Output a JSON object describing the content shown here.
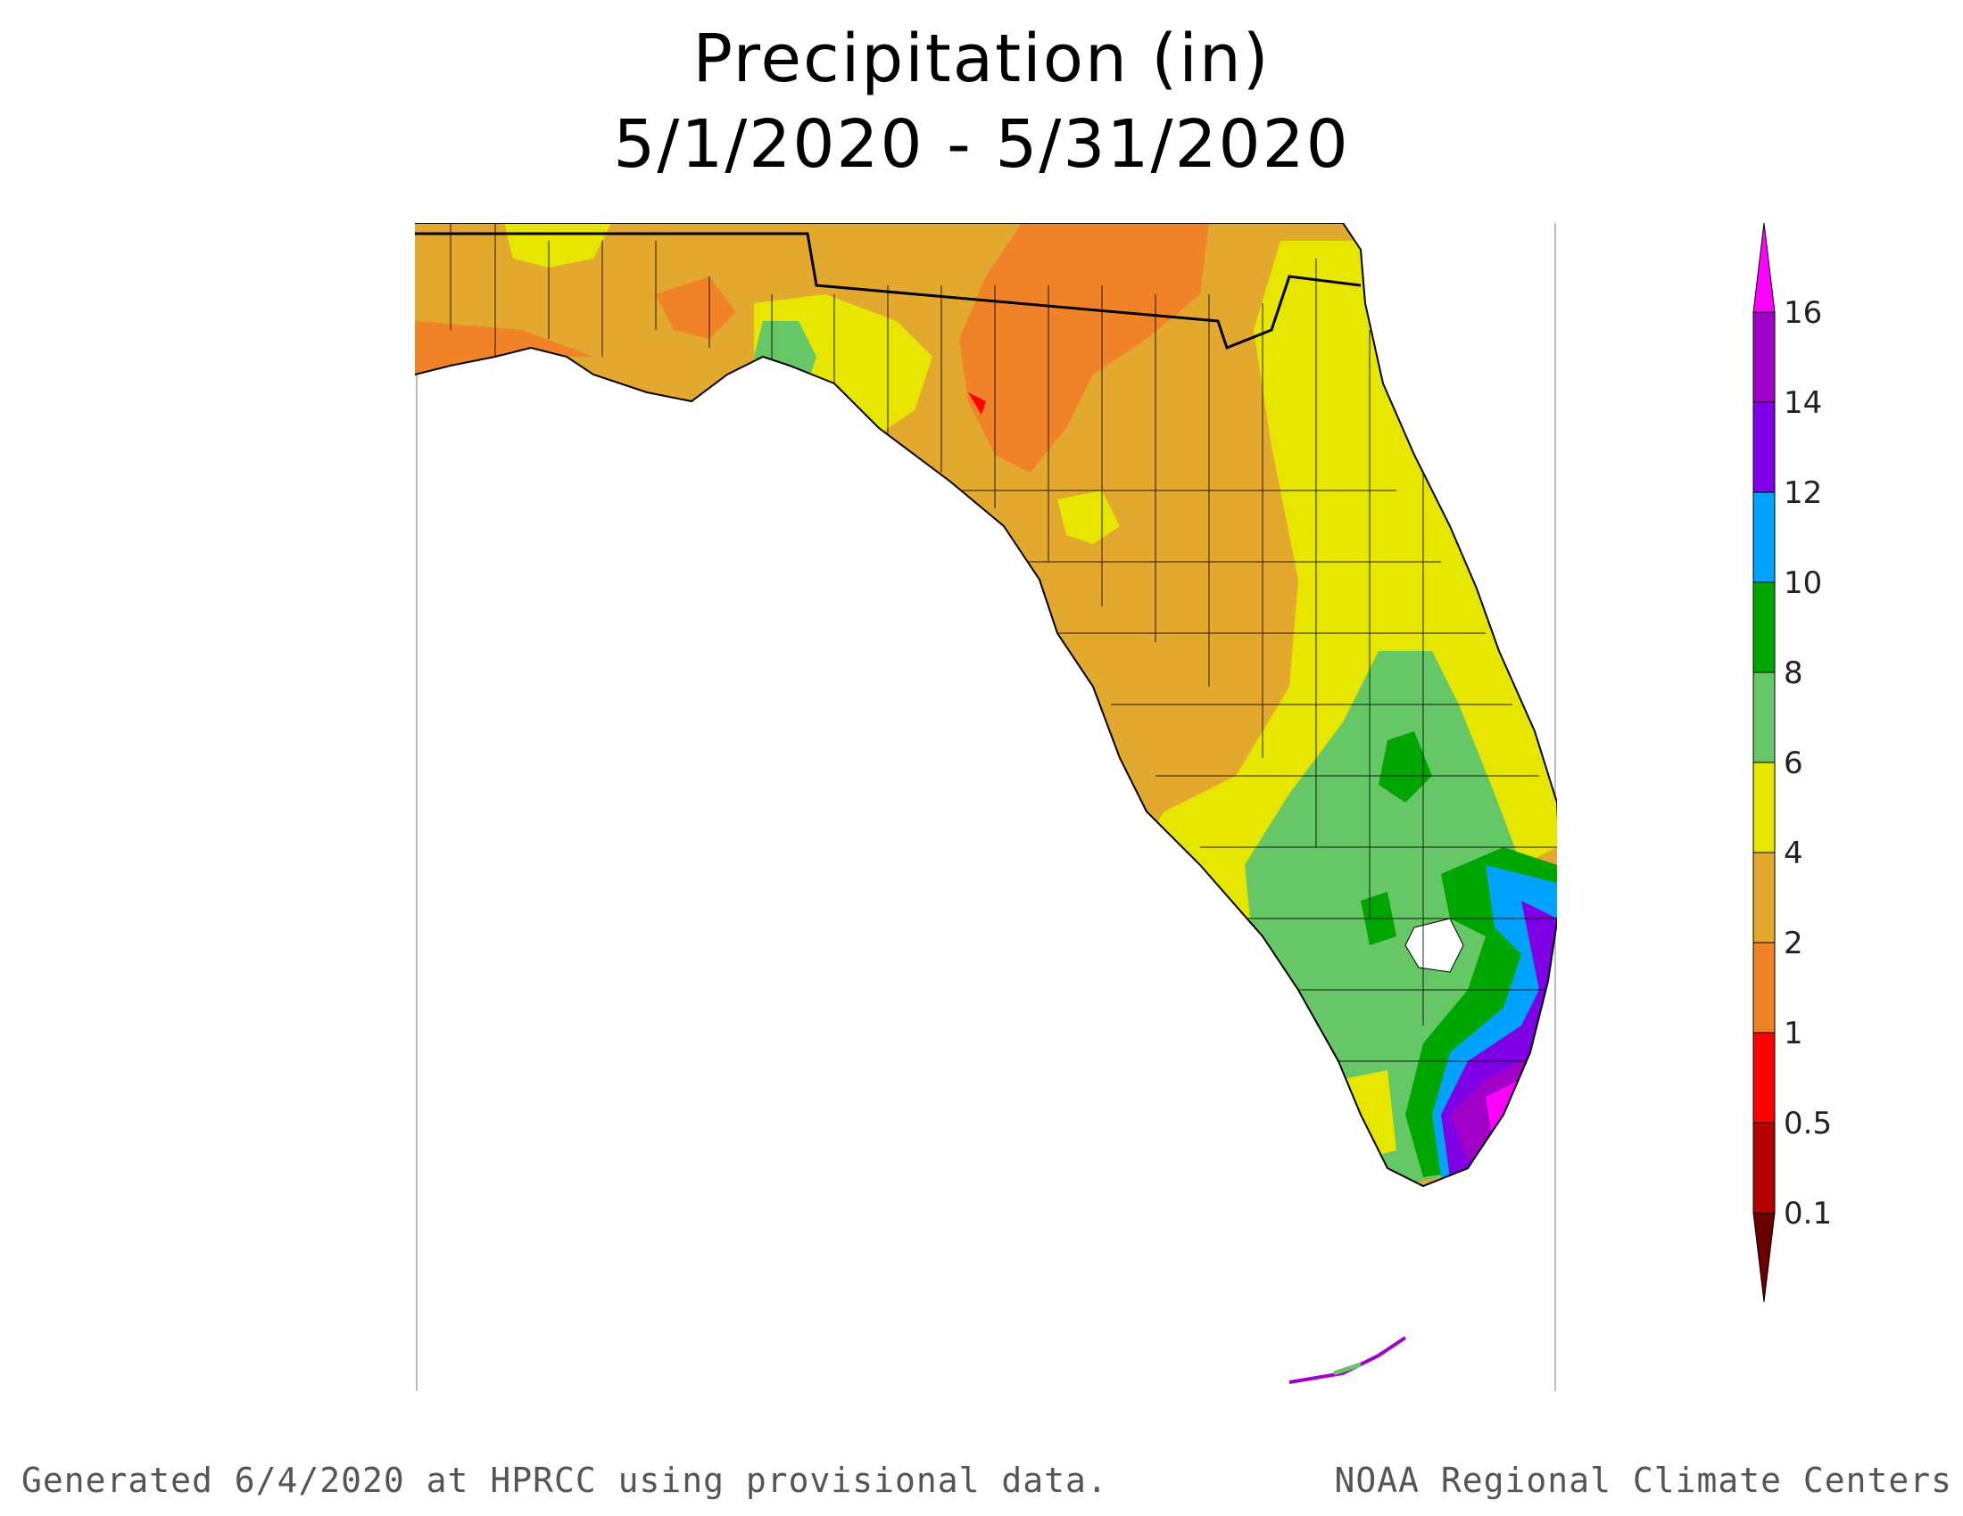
{
  "title": {
    "line1": "Precipitation (in)",
    "line2": "5/1/2020 - 5/31/2020"
  },
  "legend": {
    "levels": [
      {
        "label": "0.1",
        "color": "#6b0000"
      },
      {
        "label": "0.5",
        "color": "#b30000"
      },
      {
        "label": "1",
        "color": "#ff0000"
      },
      {
        "label": "2",
        "color": "#f08228"
      },
      {
        "label": "4",
        "color": "#e3a82e"
      },
      {
        "label": "6",
        "color": "#e6e600"
      },
      {
        "label": "8",
        "color": "#66c766"
      },
      {
        "label": "10",
        "color": "#00a600"
      },
      {
        "label": "12",
        "color": "#00a3ff"
      },
      {
        "label": "14",
        "color": "#7f00e6"
      },
      {
        "label": "16",
        "color": "#a000c8"
      }
    ],
    "over_color": "#ff00ff",
    "under_color": "#6b0000"
  },
  "map": {
    "land_color": "#ffffff",
    "boundary_color": "#000000"
  },
  "footer": {
    "left": "Generated 6/4/2020 at HPRCC using provisional data.",
    "right": "NOAA Regional Climate Centers"
  }
}
